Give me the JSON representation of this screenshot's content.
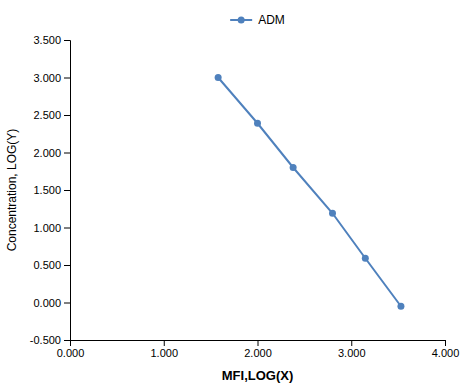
{
  "chart_data": {
    "type": "line",
    "xlabel": "MFI,LOG(X)",
    "ylabel": "Concentration, LOG(Y)",
    "x": [
      1.58,
      2,
      2.38,
      2.8,
      3.15,
      3.53
    ],
    "series": [
      {
        "name": "ADM",
        "color": "#4f81bd",
        "marker": "circle",
        "values": [
          3,
          2.39,
          1.8,
          1.19,
          0.59,
          -0.05
        ]
      }
    ],
    "xlim": [
      0,
      4
    ],
    "ylim": [
      -0.5,
      3.5
    ],
    "xticks": [
      {
        "value": 0,
        "label": "0.000"
      },
      {
        "value": 1,
        "label": "1.000"
      },
      {
        "value": 2,
        "label": "2.000"
      },
      {
        "value": 3,
        "label": "3.000"
      },
      {
        "value": 4,
        "label": "4.000"
      }
    ],
    "yticks": [
      {
        "value": -0.5,
        "label": "-0.500"
      },
      {
        "value": 0,
        "label": "0.000"
      },
      {
        "value": 0.5,
        "label": "0.500"
      },
      {
        "value": 1,
        "label": "1.000"
      },
      {
        "value": 1.5,
        "label": "1.500"
      },
      {
        "value": 2,
        "label": "2.000"
      },
      {
        "value": 2.5,
        "label": "2.500"
      },
      {
        "value": 3,
        "label": "3.000"
      },
      {
        "value": 3.5,
        "label": "3.500"
      }
    ],
    "grid": false,
    "legend": "top"
  }
}
